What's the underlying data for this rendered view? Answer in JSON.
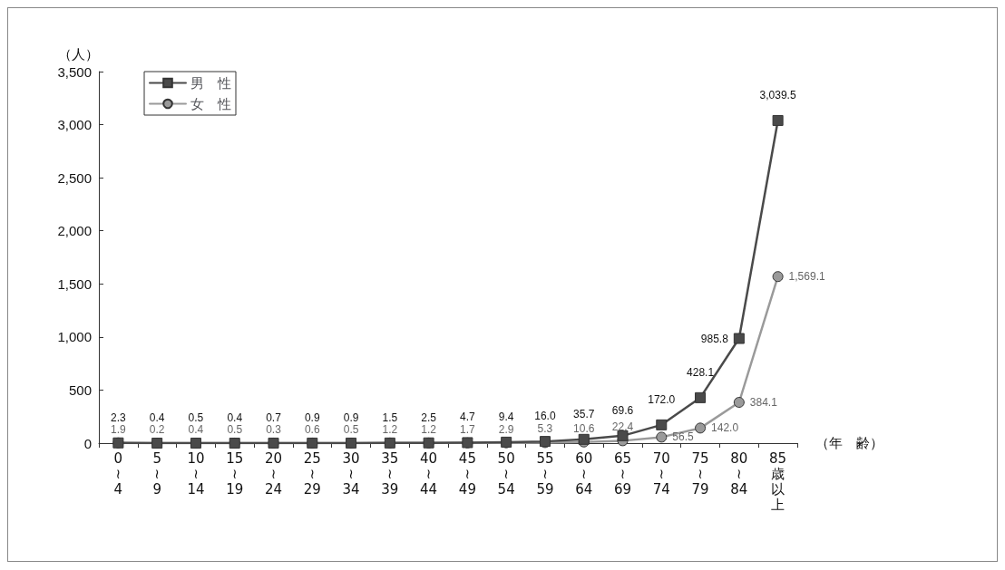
{
  "chart_data": {
    "type": "line",
    "ylabel": "（人）",
    "xlabel": "（年　齢）",
    "categories": [
      "0\n≀\n4",
      "5\n≀\n9",
      "10\n≀\n14",
      "15\n≀\n19",
      "20\n≀\n24",
      "25\n≀\n29",
      "30\n≀\n34",
      "35\n≀\n39",
      "40\n≀\n44",
      "45\n≀\n49",
      "50\n≀\n54",
      "55\n≀\n59",
      "60\n≀\n64",
      "65\n≀\n69",
      "70\n≀\n74",
      "75\n≀\n79",
      "80\n≀\n84",
      "85\n歳以上"
    ],
    "series": [
      {
        "name": "男　性",
        "color": "#4a4a4a",
        "marker": "square",
        "values": [
          2.3,
          0.4,
          0.5,
          0.4,
          0.7,
          0.9,
          0.9,
          1.5,
          2.5,
          4.7,
          9.4,
          16.0,
          35.7,
          69.6,
          172.0,
          428.1,
          985.8,
          3039.5
        ],
        "value_labels": [
          "2.3",
          "0.4",
          "0.5",
          "0.4",
          "0.7",
          "0.9",
          "0.9",
          "1.5",
          "2.5",
          "4.7",
          "9.4",
          "16.0",
          "35.7",
          "69.6",
          "172.0",
          "428.1",
          "985.8",
          "3,039.5"
        ]
      },
      {
        "name": "女　性",
        "color": "#9a9a9a",
        "marker": "circle",
        "values": [
          1.9,
          0.2,
          0.4,
          0.5,
          0.3,
          0.6,
          0.5,
          1.2,
          1.2,
          1.7,
          2.9,
          5.3,
          10.6,
          22.4,
          56.5,
          142.0,
          384.1,
          1569.1
        ],
        "value_labels": [
          "1.9",
          "0.2",
          "0.4",
          "0.5",
          "0.3",
          "0.6",
          "0.5",
          "1.2",
          "1.2",
          "1.7",
          "2.9",
          "5.3",
          "10.6",
          "22.4",
          "56.5",
          "142.0",
          "384.1",
          "1,569.1"
        ]
      }
    ],
    "ylim": [
      0,
      3500
    ],
    "yticks": [
      0,
      500,
      {
        "value": 1000,
        "label": "1,000"
      },
      {
        "value": 1500,
        "label": "1,500"
      },
      {
        "value": 2000,
        "label": "2,000"
      },
      {
        "value": 2500,
        "label": "2,500"
      },
      {
        "value": 3000,
        "label": "3,000"
      },
      {
        "value": 3500,
        "label": "3,500"
      }
    ],
    "grid": false,
    "legend": "top left",
    "line_style": "solid"
  }
}
